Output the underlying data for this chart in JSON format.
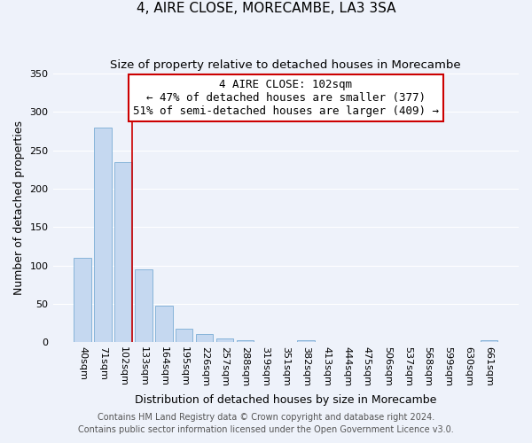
{
  "title": "4, AIRE CLOSE, MORECAMBE, LA3 3SA",
  "subtitle": "Size of property relative to detached houses in Morecambe",
  "xlabel": "Distribution of detached houses by size in Morecambe",
  "ylabel": "Number of detached properties",
  "categories": [
    "40sqm",
    "71sqm",
    "102sqm",
    "133sqm",
    "164sqm",
    "195sqm",
    "226sqm",
    "257sqm",
    "288sqm",
    "319sqm",
    "351sqm",
    "382sqm",
    "413sqm",
    "444sqm",
    "475sqm",
    "506sqm",
    "537sqm",
    "568sqm",
    "599sqm",
    "630sqm",
    "661sqm"
  ],
  "values": [
    110,
    280,
    235,
    95,
    48,
    18,
    11,
    5,
    3,
    0,
    0,
    2,
    0,
    0,
    0,
    0,
    0,
    0,
    0,
    0,
    2
  ],
  "bar_color": "#c5d8f0",
  "bar_edge_color": "#7aadd4",
  "red_line_index": 2,
  "ylim": [
    0,
    350
  ],
  "yticks": [
    0,
    50,
    100,
    150,
    200,
    250,
    300,
    350
  ],
  "annotation_title": "4 AIRE CLOSE: 102sqm",
  "annotation_line1": "← 47% of detached houses are smaller (377)",
  "annotation_line2": "51% of semi-detached houses are larger (409) →",
  "annotation_box_color": "#ffffff",
  "annotation_border_color": "#cc0000",
  "footer_line1": "Contains HM Land Registry data © Crown copyright and database right 2024.",
  "footer_line2": "Contains public sector information licensed under the Open Government Licence v3.0.",
  "background_color": "#eef2fa",
  "grid_color": "#ffffff",
  "title_fontsize": 11,
  "subtitle_fontsize": 9.5,
  "axis_label_fontsize": 9,
  "tick_fontsize": 8,
  "footer_fontsize": 7,
  "annotation_fontsize": 9
}
